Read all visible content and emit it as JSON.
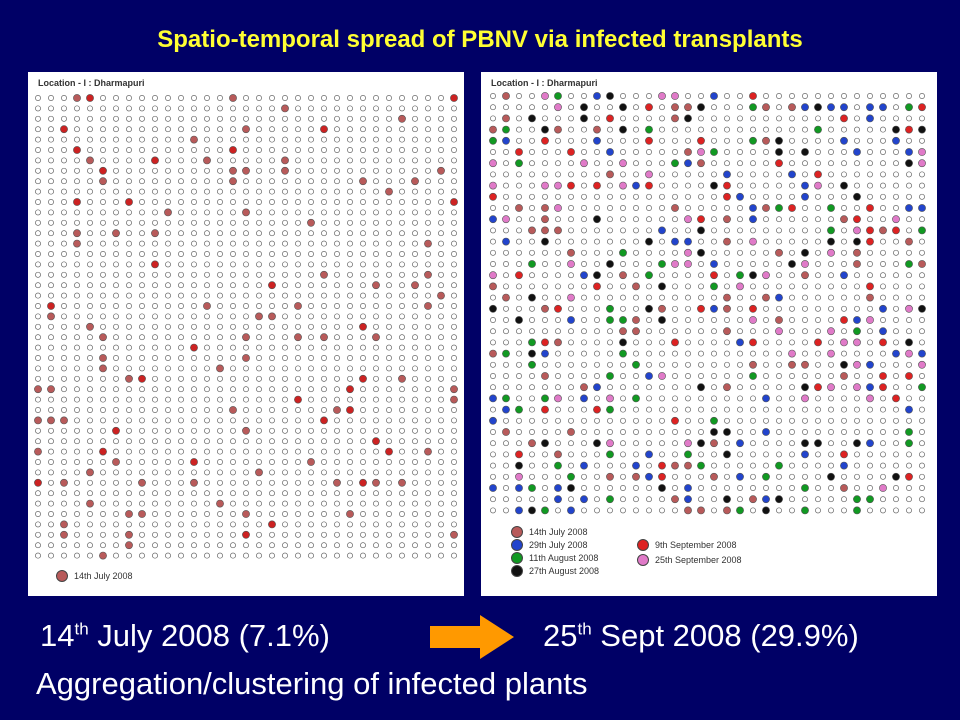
{
  "title": "Spatio-temporal spread of PBNV  via infected transplants",
  "left_map": {
    "location_label": "Location - I : Dharmapuri",
    "legend": [
      {
        "label": "14th July 2008",
        "color": "#b85a5a"
      }
    ]
  },
  "right_map": {
    "location_label": "Location - I : Dharmapuri",
    "legend_col1": [
      {
        "label": "14th July 2008",
        "color": "#b85a5a"
      },
      {
        "label": "29th July 2008",
        "color": "#2244cc"
      },
      {
        "label": "11th August 2008",
        "color": "#119922"
      },
      {
        "label": "27th August 2008",
        "color": "#111111"
      }
    ],
    "legend_col2": [
      {
        "label": "9th September 2008",
        "color": "#dd2222"
      },
      {
        "label": "25th September 2008",
        "color": "#e07ac8"
      }
    ]
  },
  "captions": {
    "left_pre": "14",
    "left_sup": "th",
    "left_post": " July 2008 (7.1%)",
    "right_pre": "25",
    "right_sup": "th",
    "right_post": " Sept 2008 (29.9%)",
    "bottom": "Aggregation/clustering  of infected plants"
  },
  "colors": {
    "background": "#000066",
    "title": "#ffff33",
    "arrow": "#ff9900",
    "healthy": "#ffffff"
  }
}
